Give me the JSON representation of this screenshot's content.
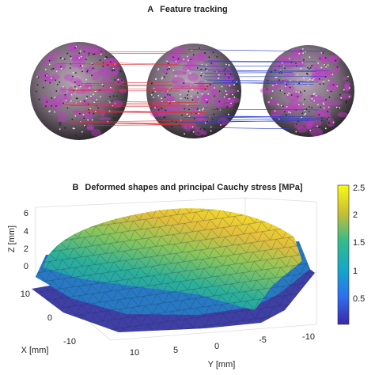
{
  "panel_a": {
    "label": "A",
    "title": "Feature tracking"
  },
  "panel_b": {
    "label": "B",
    "title": "Deformed shapes and principal Cauchy stress [MPa]",
    "z_label": "Z [mm]",
    "x_label": "X [mm]",
    "y_label": "Y [mm]",
    "z_ticks": [
      "6",
      "4",
      "2",
      "0"
    ],
    "x_ticks": [
      "10",
      "0",
      "-10"
    ],
    "y_ticks": [
      "10",
      "5",
      "0",
      "-5",
      "-10"
    ],
    "colorbar_ticks": [
      "2.5",
      "2",
      "1.5",
      "1",
      "0.5"
    ]
  }
}
